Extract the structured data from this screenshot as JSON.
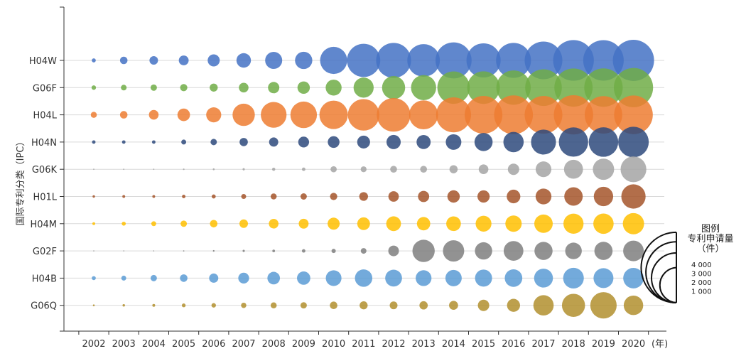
{
  "chart_data": {
    "type": "scatter",
    "subtype": "bubble",
    "ylabel": "国际专利分类（IPC）",
    "xunit": "(年)",
    "years": [
      "2002",
      "2003",
      "2004",
      "2005",
      "2006",
      "2007",
      "2008",
      "2009",
      "2010",
      "2011",
      "2012",
      "2013",
      "2014",
      "2015",
      "2016",
      "2017",
      "2018",
      "2019",
      "2020"
    ],
    "grid": true,
    "series": [
      {
        "name": "H04W",
        "color": "#4472C4",
        "values": [
          40,
          140,
          180,
          240,
          360,
          520,
          720,
          740,
          1820,
          2740,
          3020,
          2620,
          3220,
          2890,
          3020,
          3520,
          4100,
          4060,
          4200
        ]
      },
      {
        "name": "G06F",
        "color": "#70AD47",
        "values": [
          50,
          80,
          100,
          130,
          160,
          230,
          320,
          380,
          630,
          1000,
          1320,
          1560,
          2600,
          2630,
          2920,
          3320,
          3620,
          3660,
          3810
        ]
      },
      {
        "name": "H04L",
        "color": "#ED7D31",
        "values": [
          90,
          140,
          230,
          390,
          560,
          1230,
          1640,
          1740,
          2000,
          2450,
          2790,
          2080,
          3020,
          3520,
          3720,
          3520,
          3820,
          3480,
          3700
        ]
      },
      {
        "name": "H04N",
        "color": "#2E4A7D",
        "values": [
          30,
          30,
          30,
          60,
          100,
          170,
          210,
          290,
          340,
          410,
          500,
          490,
          600,
          810,
          1020,
          1540,
          2130,
          2150,
          2320
        ]
      },
      {
        "name": "G06K",
        "color": "#A5A5A5",
        "values": [
          4,
          4,
          4,
          6,
          8,
          12,
          25,
          30,
          95,
          85,
          115,
          115,
          165,
          230,
          320,
          610,
          890,
          1120,
          1640
        ]
      },
      {
        "name": "H01L",
        "color": "#A5552A",
        "values": [
          15,
          20,
          20,
          30,
          40,
          60,
          90,
          100,
          130,
          190,
          270,
          310,
          380,
          370,
          460,
          620,
          840,
          930,
          1460
        ]
      },
      {
        "name": "H04M",
        "color": "#FFC000",
        "values": [
          20,
          40,
          60,
          100,
          140,
          180,
          230,
          240,
          360,
          400,
          540,
          440,
          530,
          620,
          660,
          840,
          1000,
          1020,
          1120
        ]
      },
      {
        "name": "G02F",
        "color": "#7F7F7F",
        "values": [
          1,
          1,
          2,
          4,
          7,
          12,
          18,
          30,
          45,
          80,
          280,
          1230,
          1120,
          740,
          960,
          810,
          680,
          820,
          1050
        ]
      },
      {
        "name": "H04B",
        "color": "#5B9BD5",
        "values": [
          40,
          60,
          100,
          140,
          210,
          290,
          390,
          440,
          610,
          750,
          700,
          620,
          660,
          720,
          760,
          880,
          1060,
          980,
          1040
        ]
      },
      {
        "name": "G06Q",
        "color": "#B18F2E",
        "values": [
          8,
          15,
          20,
          35,
          50,
          70,
          90,
          100,
          140,
          160,
          150,
          170,
          200,
          320,
          420,
          1020,
          1320,
          1720,
          940
        ]
      }
    ],
    "legend": {
      "title": [
        "图例",
        "专利申请量",
        "（件）"
      ],
      "values": [
        4000,
        3000,
        2000,
        1000
      ],
      "labels": [
        "4 000",
        "3 000",
        "2 000",
        "1 000"
      ],
      "position": "right"
    }
  }
}
